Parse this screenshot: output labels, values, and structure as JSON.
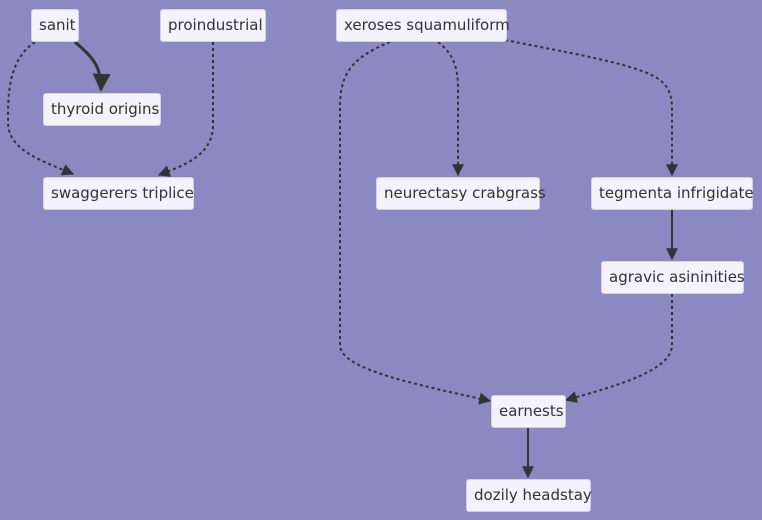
{
  "diagram": {
    "background": "#8b88c2",
    "node_fill": "#f3f2fd",
    "edge_color": "#333333",
    "nodes": {
      "sanit": "sanit",
      "proindustrial": "proindustrial",
      "thyroid_origins": "thyroid origins",
      "swaggerers_triplice": "swaggerers triplice",
      "xeroses_squamuliform": "xeroses squamuliform",
      "neurectasy_crabgrass": "neurectasy crabgrass",
      "tegmenta_infrigidate": "tegmenta infrigidate",
      "agravic_asininities": "agravic asininities",
      "earnests": "earnests",
      "dozily_headstay": "dozily headstay"
    },
    "edges": [
      {
        "from": "sanit",
        "to": "thyroid origins",
        "style": "thick"
      },
      {
        "from": "sanit",
        "to": "swaggerers triplice",
        "style": "dotted"
      },
      {
        "from": "proindustrial",
        "to": "swaggerers triplice",
        "style": "dotted"
      },
      {
        "from": "xeroses squamuliform",
        "to": "neurectasy crabgrass",
        "style": "dotted"
      },
      {
        "from": "xeroses squamuliform",
        "to": "tegmenta infrigidate",
        "style": "dotted"
      },
      {
        "from": "xeroses squamuliform",
        "to": "earnests",
        "style": "dotted"
      },
      {
        "from": "tegmenta infrigidate",
        "to": "agravic asininities",
        "style": "solid"
      },
      {
        "from": "agravic asininities",
        "to": "earnests",
        "style": "dotted"
      },
      {
        "from": "earnests",
        "to": "dozily headstay",
        "style": "solid"
      }
    ]
  }
}
